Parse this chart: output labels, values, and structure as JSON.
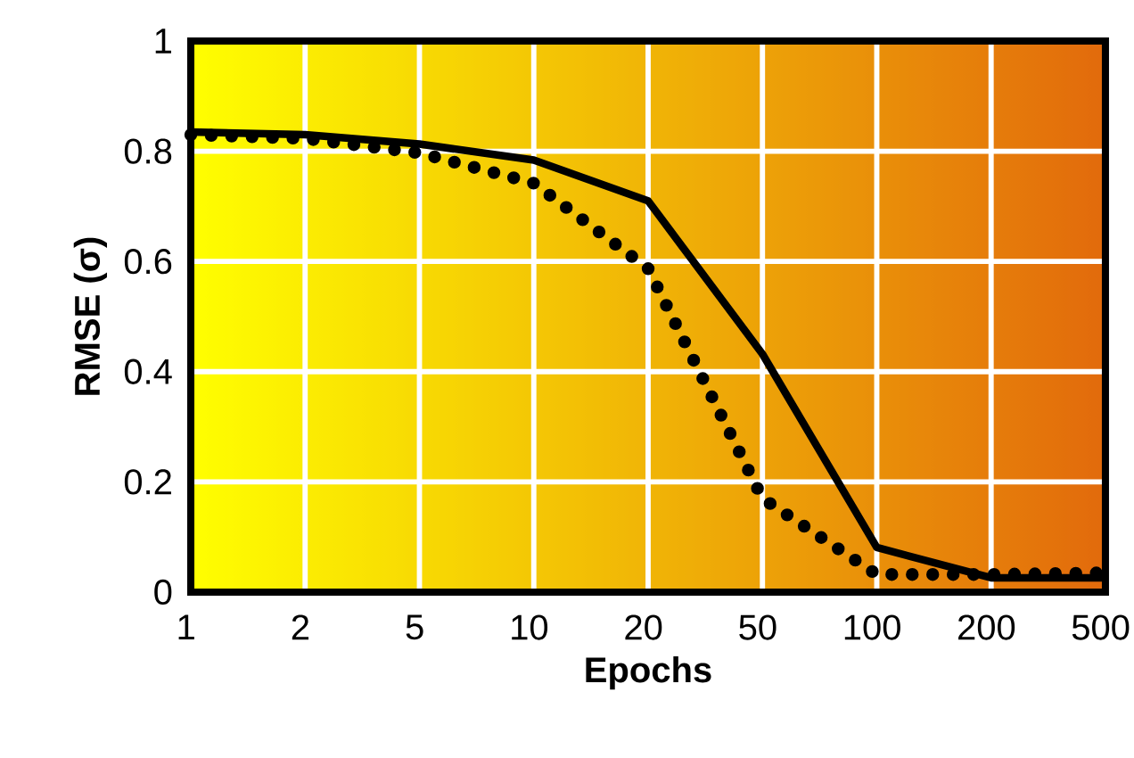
{
  "chart_data": {
    "type": "line",
    "xlabel": "Epochs",
    "ylabel": "RMSE (σ)",
    "categories": [
      "1",
      "2",
      "5",
      "10",
      "20",
      "50",
      "100",
      "200",
      "500"
    ],
    "series": [
      {
        "color": "#000000",
        "line_style": "solid",
        "values": [
          0.835,
          0.83,
          0.813,
          0.784,
          0.71,
          0.432,
          0.081,
          0.026,
          0.026
        ]
      },
      {
        "color": "#000000",
        "line_style": "dotted",
        "values": [
          0.83,
          0.823,
          0.797,
          0.742,
          0.587,
          0.17,
          0.032,
          0.032,
          0.035
        ]
      }
    ],
    "ylim": [
      0,
      1
    ],
    "yticks": [
      0,
      0.2,
      0.4,
      0.6,
      0.8,
      1
    ],
    "grid": true,
    "marker": "none"
  }
}
